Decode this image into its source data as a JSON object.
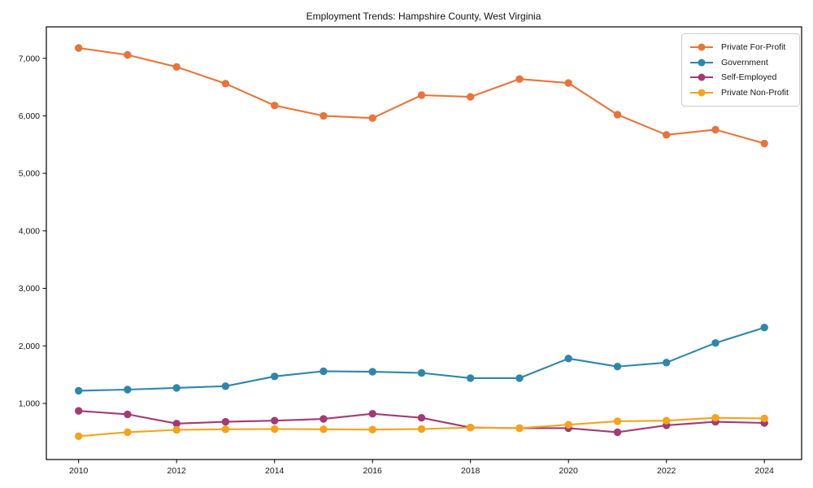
{
  "chart_data": {
    "type": "line",
    "title": "Employment Trends: Hampshire County, West Virginia",
    "x": [
      2010,
      2011,
      2012,
      2013,
      2014,
      2015,
      2016,
      2017,
      2018,
      2019,
      2020,
      2021,
      2022,
      2023,
      2024
    ],
    "series": [
      {
        "name": "Private For-Profit",
        "color": "#E8743B",
        "values": [
          7180,
          7060,
          6850,
          6560,
          6180,
          6000,
          5960,
          6360,
          6330,
          6640,
          6570,
          6020,
          5670,
          5760,
          5520
        ]
      },
      {
        "name": "Government",
        "color": "#2E86AB",
        "values": [
          1220,
          1240,
          1270,
          1300,
          1470,
          1560,
          1550,
          1530,
          1440,
          1440,
          1780,
          1640,
          1710,
          2050,
          2320
        ]
      },
      {
        "name": "Self-Employed",
        "color": "#A23B72",
        "values": [
          870,
          810,
          650,
          680,
          700,
          730,
          820,
          750,
          580,
          570,
          570,
          500,
          620,
          680,
          660
        ]
      },
      {
        "name": "Private Non-Profit",
        "color": "#F5A31A",
        "values": [
          430,
          500,
          540,
          550,
          555,
          550,
          545,
          555,
          580,
          570,
          630,
          690,
          700,
          750,
          740
        ]
      }
    ],
    "xticks": [
      2010,
      2012,
      2014,
      2016,
      2018,
      2020,
      2022,
      2024
    ],
    "yticks": [
      1000,
      2000,
      3000,
      4000,
      5000,
      6000,
      7000
    ],
    "ytick_labels": [
      "1,000",
      "2,000",
      "3,000",
      "4,000",
      "5,000",
      "6,000",
      "7,000"
    ],
    "xlabel": "",
    "ylabel": "",
    "ylim": [
      25,
      7545
    ],
    "xlim": [
      2009.35,
      2024.75
    ],
    "grid": false,
    "legend_position": "upper-right",
    "marker": "circle",
    "axis_color": "#000000"
  }
}
